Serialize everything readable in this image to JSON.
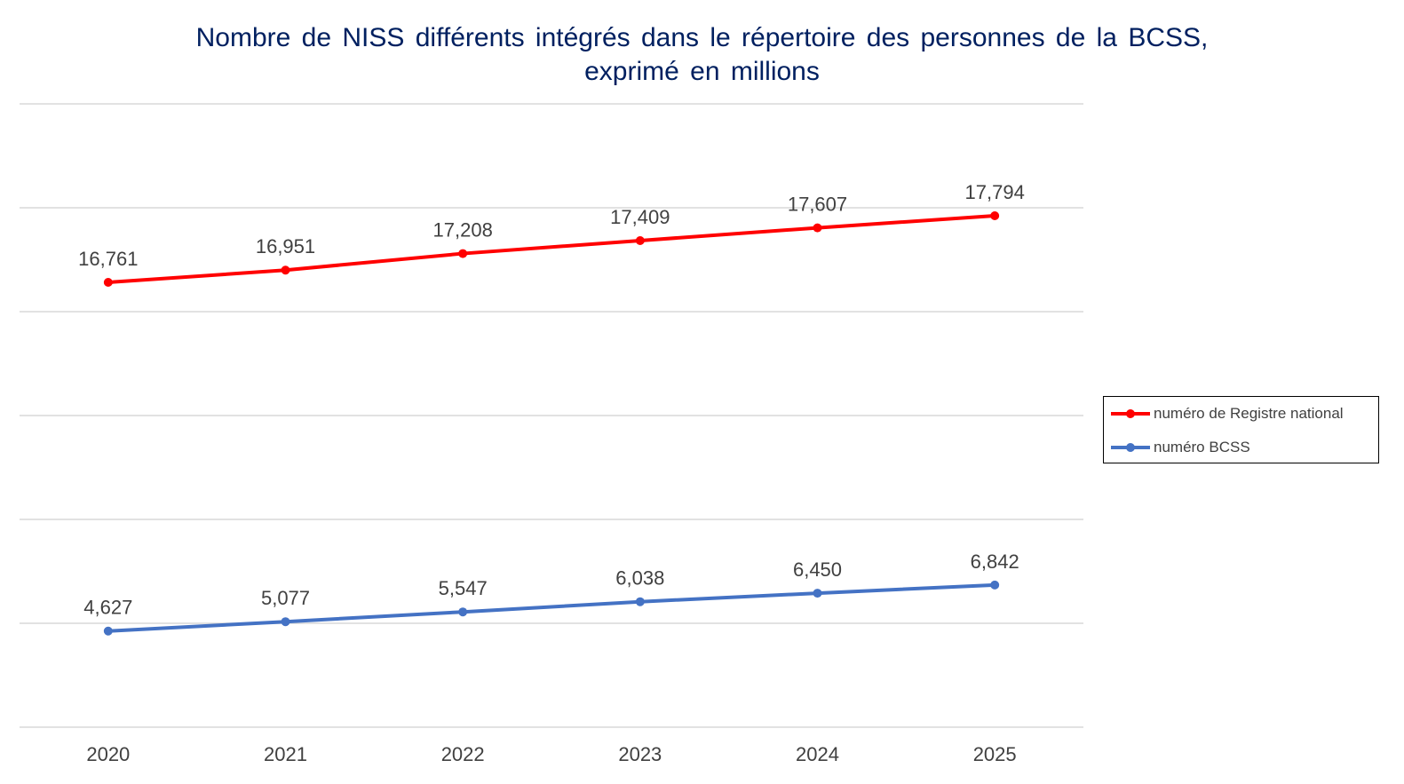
{
  "chart_data": {
    "type": "line",
    "title": "Nombre de NISS différents intégrés dans le répertoire des personnes de la BCSS, exprimé en millions",
    "title_lines": [
      "Nombre de NISS différents intégrés dans le répertoire des personnes de la BCSS,",
      "exprimé en millions"
    ],
    "categories": [
      "2020",
      "2021",
      "2022",
      "2023",
      "2024",
      "2025"
    ],
    "series": [
      {
        "name": "numéro de Registre national",
        "color": "#FF0000",
        "axis": "secondary",
        "values": [
          16.761,
          16.951,
          17.208,
          17.409,
          17.607,
          17.794
        ],
        "labels": [
          "16,761",
          "16,951",
          "17,208",
          "17,409",
          "17,607",
          "17,794"
        ]
      },
      {
        "name": "numéro BCSS",
        "color": "#4472C4",
        "axis": "primary",
        "values": [
          4.627,
          5.077,
          5.547,
          6.038,
          6.45,
          6.842
        ],
        "labels": [
          "4,627",
          "5,077",
          "5,547",
          "6,038",
          "6,450",
          "6,842"
        ]
      }
    ],
    "ylim": [
      0,
      30
    ],
    "ylim_secondary": [
      9.86,
      19.53
    ],
    "y_axis_labels_shown": false,
    "grid": true,
    "legend_position": "right"
  }
}
